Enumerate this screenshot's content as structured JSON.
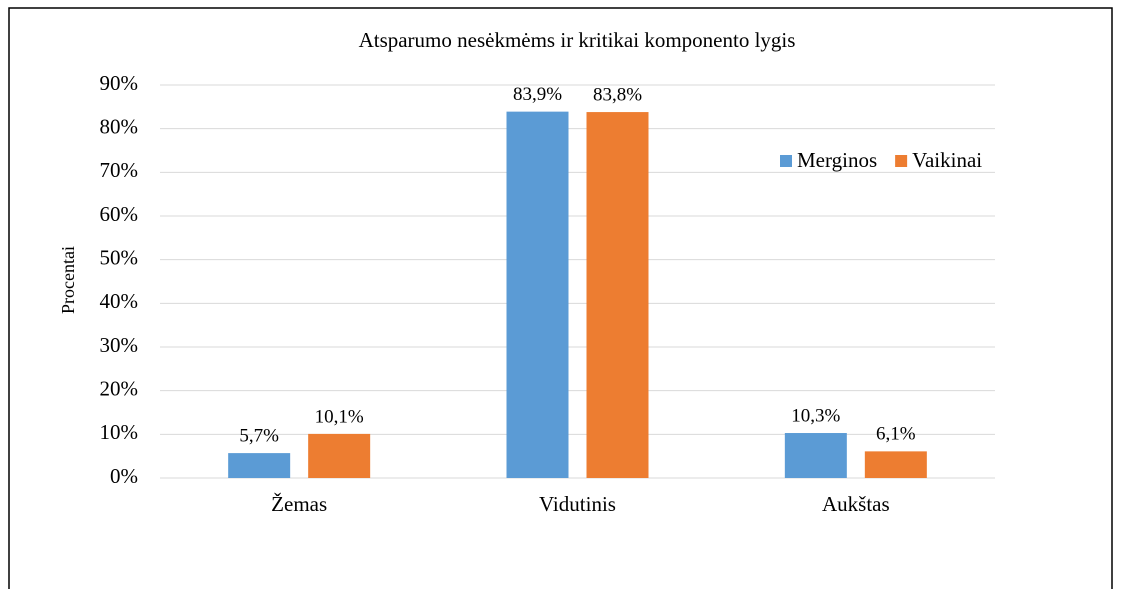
{
  "chart_data": {
    "type": "bar",
    "title": "Atsparumo nesėkmėms ir kritikai  komponento lygis",
    "y_label": "Procentai",
    "categories": [
      "Žemas",
      "Vidutinis",
      "Aukštas"
    ],
    "series": [
      {
        "name": "Merginos",
        "color": "#5b9bd5",
        "values": [
          5.7,
          83.9,
          10.3
        ],
        "value_labels": [
          "5,7%",
          "83,9%",
          "10,3%"
        ]
      },
      {
        "name": "Vaikinai",
        "color": "#ed7d31",
        "values": [
          10.1,
          83.8,
          6.1
        ],
        "value_labels": [
          "10,1%",
          "83,8%",
          "6,1%"
        ]
      }
    ],
    "ylim": [
      0,
      90
    ],
    "yticks": [
      {
        "value": 0,
        "label": "0%"
      },
      {
        "value": 10,
        "label": "10%"
      },
      {
        "value": 20,
        "label": "20%"
      },
      {
        "value": 30,
        "label": "30%"
      },
      {
        "value": 40,
        "label": "40%"
      },
      {
        "value": 50,
        "label": "50%"
      },
      {
        "value": 60,
        "label": "60%"
      },
      {
        "value": 70,
        "label": "70%"
      },
      {
        "value": 80,
        "label": "80%"
      },
      {
        "value": 90,
        "label": "90%"
      }
    ],
    "grid": true
  }
}
